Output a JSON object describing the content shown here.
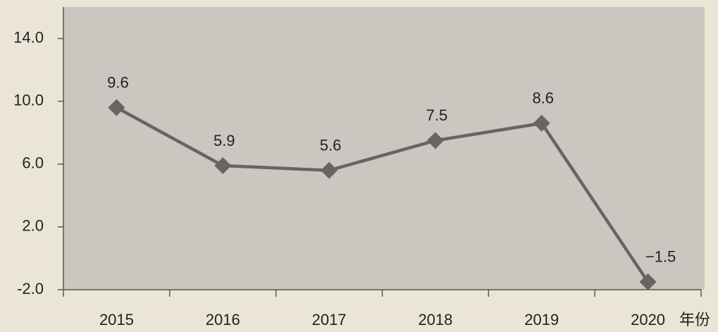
{
  "chart_data": {
    "type": "line",
    "x_label": "年份",
    "categories": [
      "2015",
      "2016",
      "2017",
      "2018",
      "2019",
      "2020"
    ],
    "series": [
      {
        "color": "#676465",
        "values": [
          9.6,
          5.9,
          5.6,
          7.5,
          8.6,
          -1.5
        ],
        "value_labels": [
          "9.6",
          "5.9",
          "5.6",
          "7.5",
          "8.6",
          "−1.5"
        ]
      }
    ],
    "ylim": [
      -2,
      16
    ],
    "yticks": [
      {
        "value": -2,
        "label": "-2.0"
      },
      {
        "value": 2,
        "label": "2.0"
      },
      {
        "value": 6,
        "label": "6.0"
      },
      {
        "value": 10,
        "label": "10.0"
      },
      {
        "value": 14,
        "label": "14.0"
      }
    ],
    "grid": false
  }
}
